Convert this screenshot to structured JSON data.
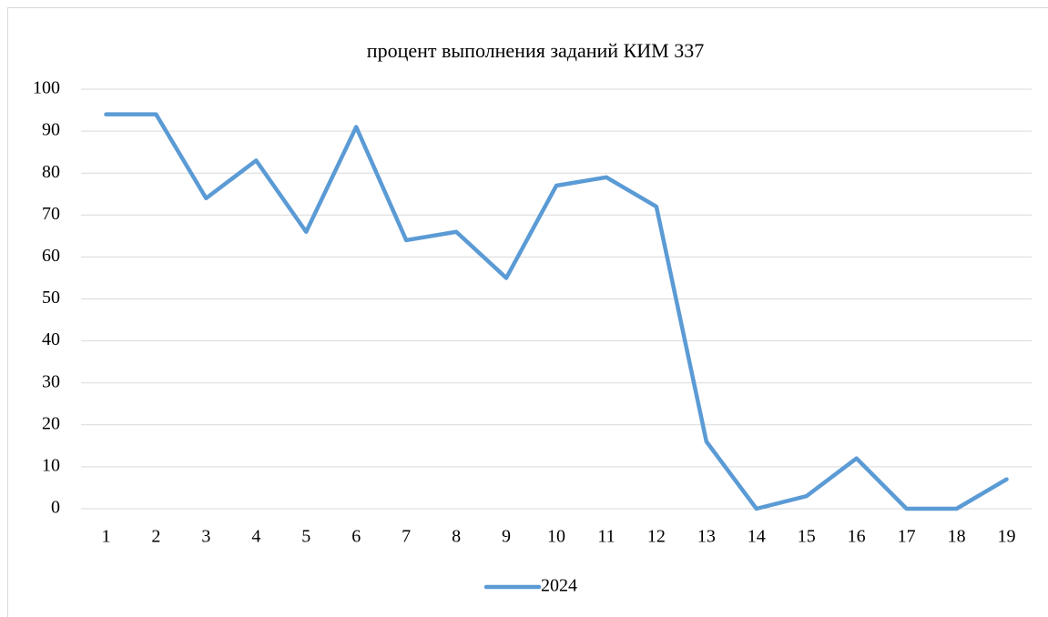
{
  "chart_data": {
    "type": "line",
    "title": "процент выполнения заданий КИМ 337",
    "categories": [
      "1",
      "2",
      "3",
      "4",
      "5",
      "6",
      "7",
      "8",
      "9",
      "10",
      "11",
      "12",
      "13",
      "14",
      "15",
      "16",
      "17",
      "18",
      "19"
    ],
    "series": [
      {
        "name": "2024",
        "color": "#5b9bd5",
        "values": [
          94,
          94,
          74,
          83,
          66,
          91,
          64,
          66,
          55,
          77,
          79,
          72,
          16,
          0,
          3,
          12,
          0,
          0,
          7
        ]
      }
    ],
    "ylim": [
      0,
      100
    ],
    "yticks": [
      0,
      10,
      20,
      30,
      40,
      50,
      60,
      70,
      80,
      90,
      100
    ],
    "grid": true,
    "legend": "bottom"
  }
}
